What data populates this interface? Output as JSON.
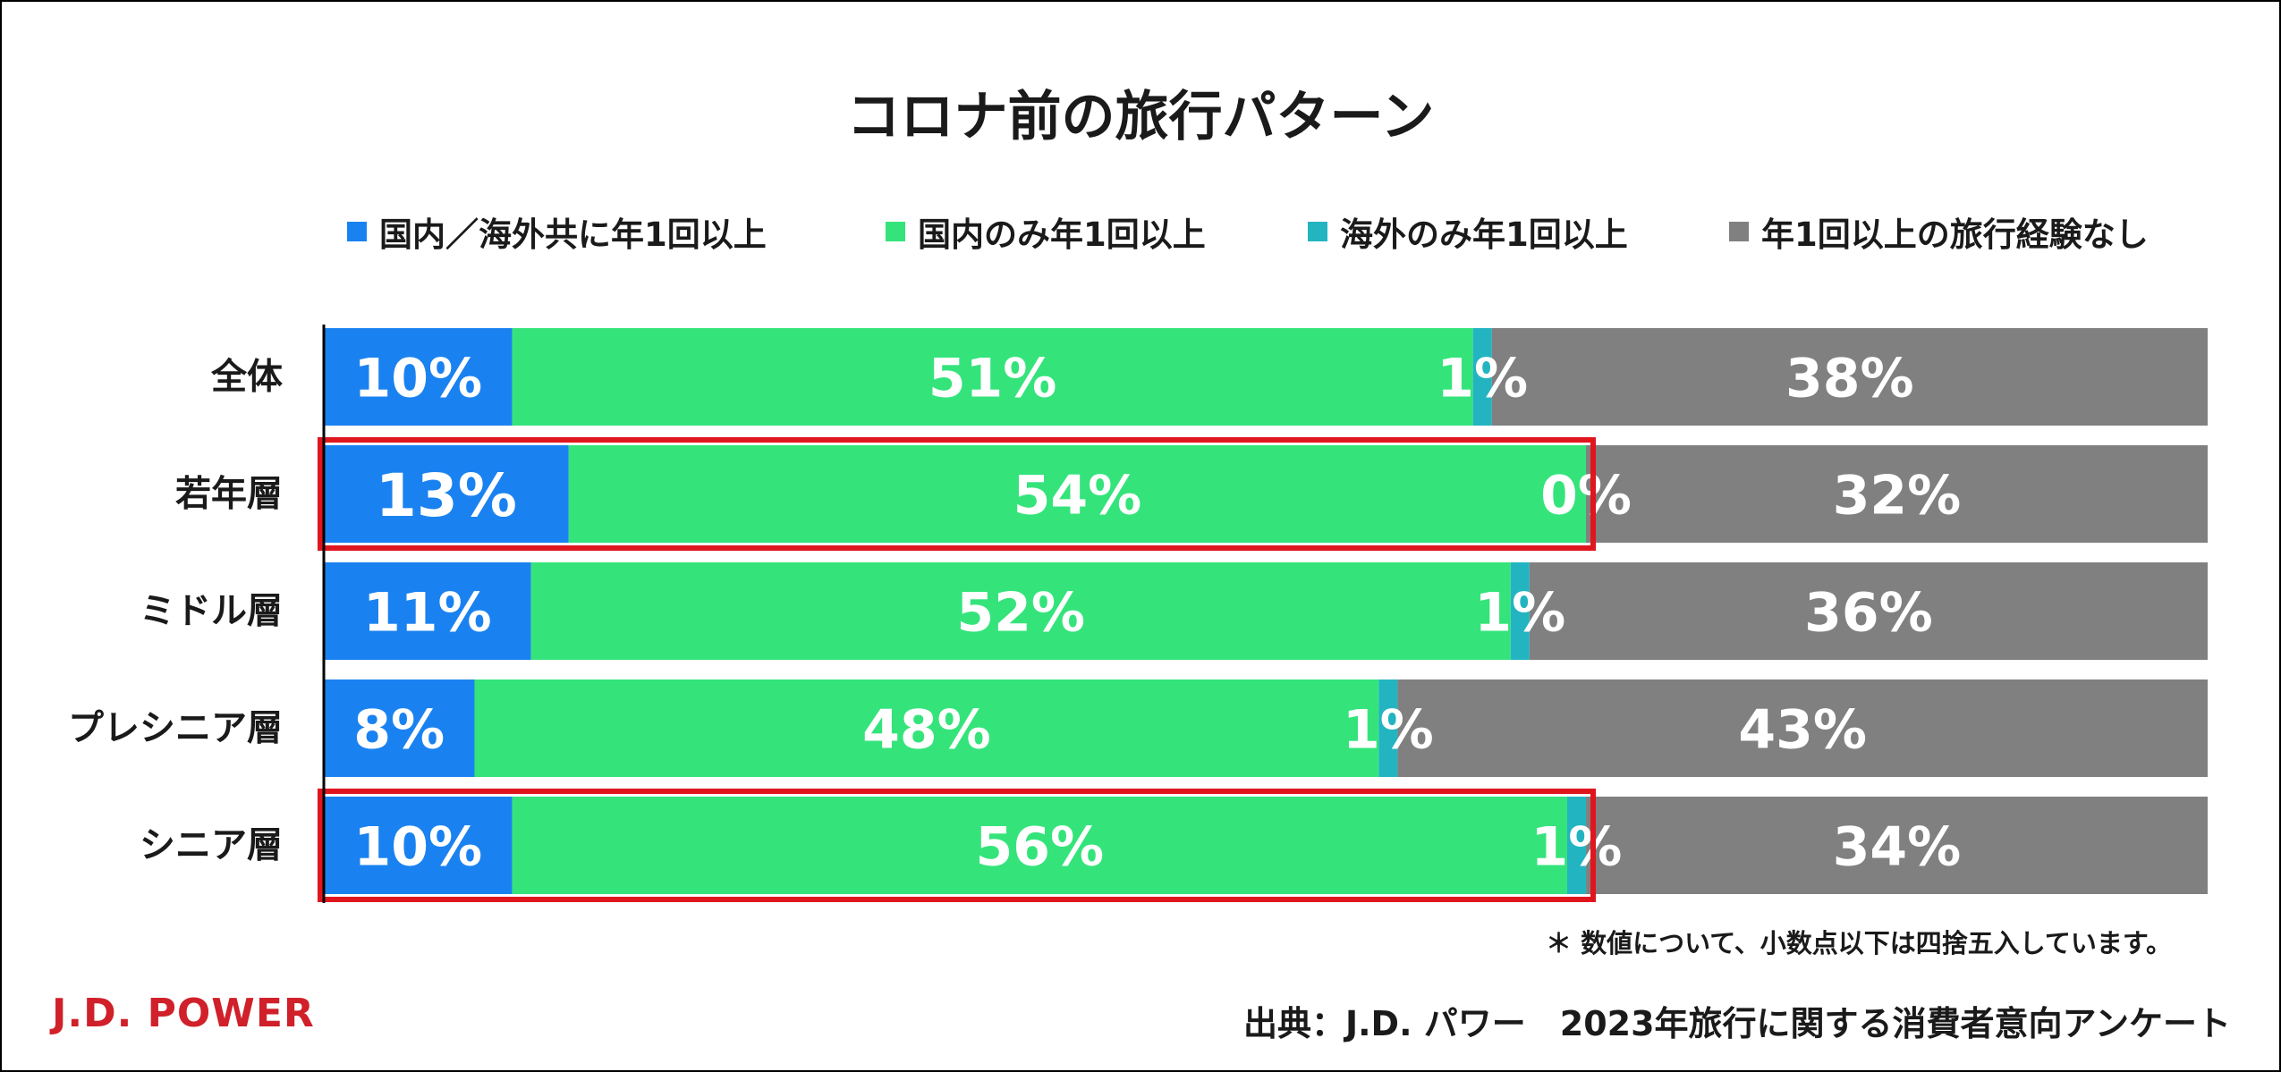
{
  "chart_data": {
    "type": "bar",
    "orientation": "horizontal",
    "stacked": true,
    "title": "コロナ前の旅行パターン",
    "categories": [
      "全体",
      "若年層",
      "ミドル層",
      "プレシニア層",
      "シニア層"
    ],
    "series": [
      {
        "name": "国内／海外共に年1回以上",
        "color": "#1a82f0",
        "values": [
          10,
          13,
          11,
          8,
          10
        ]
      },
      {
        "name": "国内のみ年1回以上",
        "color": "#34e47b",
        "values": [
          51,
          54,
          52,
          48,
          56
        ]
      },
      {
        "name": "海外のみ年1回以上",
        "color": "#23b4c2",
        "values": [
          1,
          0,
          1,
          1,
          1
        ]
      },
      {
        "name": "年1回以上の旅行経験なし",
        "color": "#808080",
        "values": [
          38,
          32,
          36,
          43,
          34
        ]
      }
    ],
    "data_labels": [
      [
        "10%",
        "51%",
        "1%",
        "38%"
      ],
      [
        "13%",
        "54%",
        "0%",
        "32%"
      ],
      [
        "11%",
        "52%",
        "1%",
        "36%"
      ],
      [
        "8%",
        "48%",
        "1%",
        "43%"
      ],
      [
        "10%",
        "56%",
        "1%",
        "34%"
      ]
    ],
    "xlim": [
      0,
      100
    ],
    "highlighted_categories": [
      "若年層",
      "シニア層"
    ],
    "highlight_color": "#e0161e",
    "legend_position": "top"
  },
  "footnote": "＊ 数値について、小数点以下は四捨五入しています。",
  "brand": {
    "logo_text": "J.D. POWER",
    "color": "#d0202a"
  },
  "source": "出典：J.D. パワー　2023年旅行に関する消費者意向アンケート"
}
